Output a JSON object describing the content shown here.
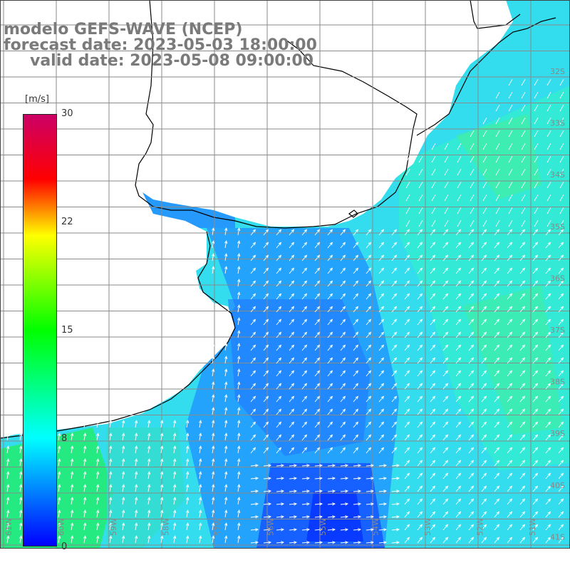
{
  "title": {
    "model": "modelo GEFS-WAVE (NCEP)",
    "forecast": "forecast date: 2023-05-03 18:00:00",
    "valid": "valid date: 2023-05-08 09:00:00"
  },
  "colorbar": {
    "unit": "[m/s]",
    "ticks": [
      "30",
      "22",
      "15",
      "8",
      "0"
    ],
    "tick_values": [
      30,
      22,
      15,
      8,
      0
    ],
    "colors": [
      "#0000ff",
      "#00ffff",
      "#00ff00",
      "#ffff00",
      "#ff0000",
      "#cc0066"
    ]
  },
  "map": {
    "lat_labels": [
      "32S",
      "33S",
      "34S",
      "35S",
      "36S",
      "37S",
      "38S",
      "39S",
      "40S",
      "41S"
    ],
    "lon_labels": [
      "61W",
      "60W",
      "59W",
      "58W",
      "57W",
      "56W",
      "55W",
      "54W",
      "53W",
      "52W",
      "51W"
    ],
    "land_color": "#ffffff",
    "coast_color": "#000000",
    "grid_color": "#808080"
  }
}
